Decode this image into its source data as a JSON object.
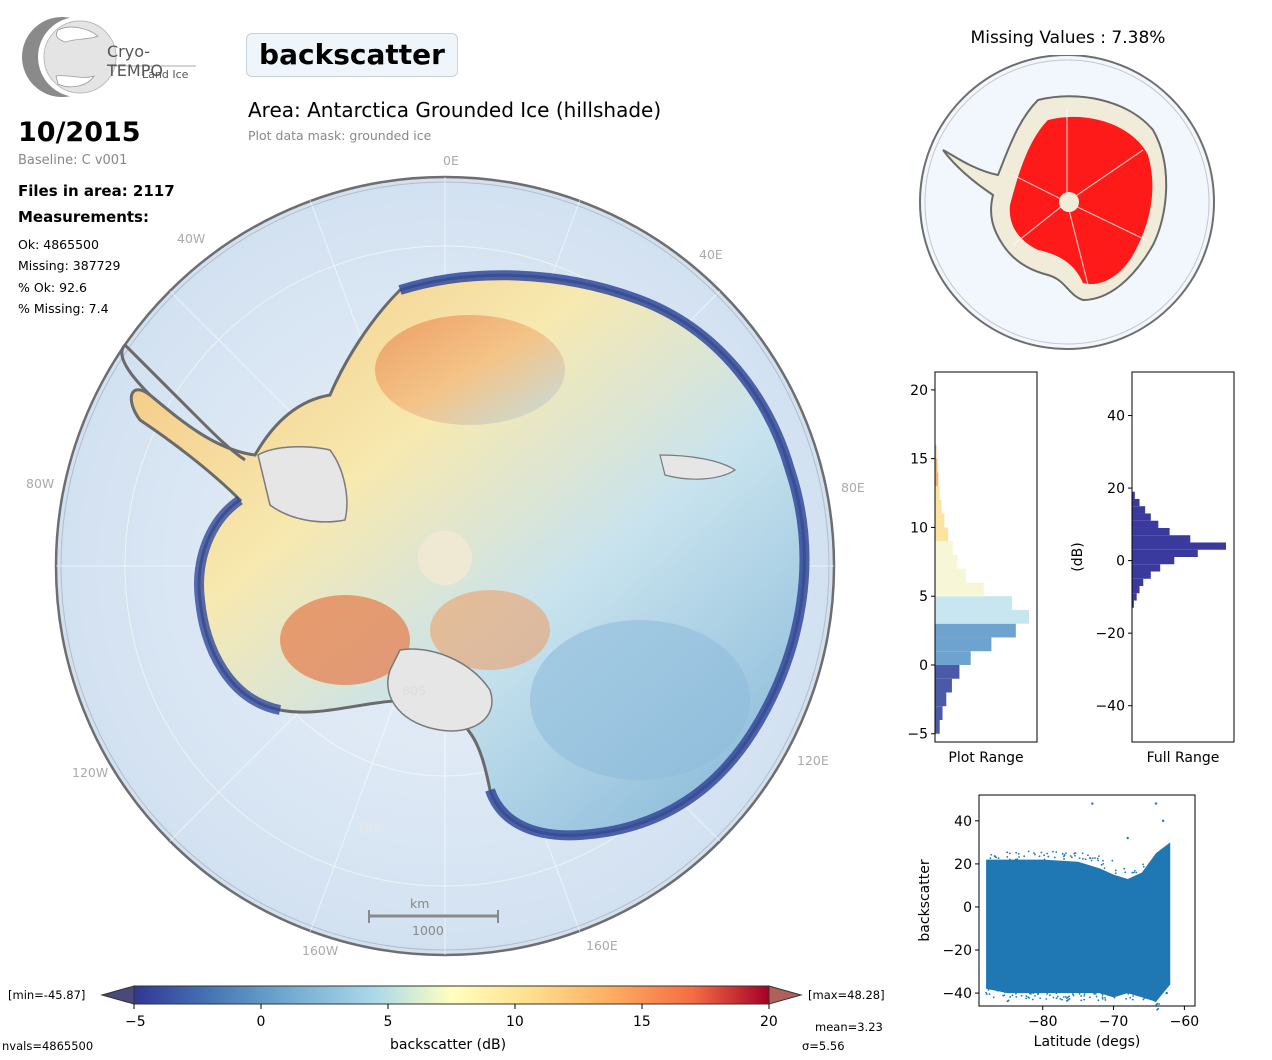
{
  "logo": {
    "name": "Cryo-TEMPO",
    "subtitle": "Land Ice"
  },
  "variable": "backscatter",
  "date": "10/2015",
  "baseline": "Baseline: C v001",
  "files_in_area": "Files in area: 2117",
  "measurements_title": "Measurements:",
  "stats": [
    "Ok: 4865500",
    "Missing: 387729",
    "% Ok: 92.6",
    "% Missing: 7.4"
  ],
  "area_title": "Area: Antarctica Grounded Ice (hillshade)",
  "mask_note": "Plot data mask: grounded ice",
  "map": {
    "lon_labels": [
      "0E",
      "40E",
      "80E",
      "120E",
      "160E",
      "160W",
      "120W",
      "80W",
      "40W"
    ],
    "lat_labels": [
      "80S",
      "70S"
    ],
    "scalebar": {
      "unit": "km",
      "value": "1000"
    },
    "colors": {
      "ocean": "#dbe7f4",
      "rim": "#5a5a5a",
      "pole": "#efe9d4"
    }
  },
  "missing": {
    "title": "Missing Values : 7.38%",
    "color": "#ff0000"
  },
  "colorbar": {
    "min_label": "[min=-45.87]",
    "max_label": "[max=48.28]",
    "ticks": [
      "-5",
      "0",
      "5",
      "10",
      "15",
      "20"
    ],
    "label": "backscatter (dB)",
    "nvals": "nvals=4865500",
    "mean": "mean=3.23",
    "sigma": "σ=5.56"
  },
  "chart_data": [
    {
      "type": "histogram",
      "title": "",
      "xlabel": "Plot Range",
      "ylabel": "",
      "ylim": [
        -5.6,
        21.3
      ],
      "yticks": [
        -5,
        0,
        5,
        10,
        15,
        20
      ],
      "bins_center": [
        -4.5,
        -3.5,
        -2.5,
        -1.5,
        -0.5,
        0.5,
        1.5,
        2.5,
        3.5,
        4.5,
        5.5,
        6.5,
        7.5,
        8.5,
        9.5,
        10.5,
        11.5,
        12.5,
        13.5,
        14.5,
        15.5,
        16.5
      ],
      "counts_relative": [
        0.05,
        0.08,
        0.12,
        0.18,
        0.26,
        0.38,
        0.6,
        0.86,
        1.0,
        0.82,
        0.52,
        0.33,
        0.24,
        0.19,
        0.14,
        0.1,
        0.07,
        0.05,
        0.035,
        0.025,
        0.015,
        0.005
      ]
    },
    {
      "type": "histogram",
      "title": "",
      "xlabel": "Full Range",
      "ylabel": "(dB)",
      "ylim": [
        -50,
        52
      ],
      "yticks": [
        -40,
        -20,
        0,
        20,
        40
      ],
      "bins_center": [
        -12,
        -10,
        -8,
        -6,
        -4,
        -2,
        0,
        2,
        4,
        6,
        8,
        10,
        12,
        14,
        16,
        18
      ],
      "counts_relative": [
        0.02,
        0.05,
        0.08,
        0.12,
        0.2,
        0.3,
        0.45,
        0.7,
        1.0,
        0.62,
        0.4,
        0.28,
        0.2,
        0.14,
        0.08,
        0.03
      ],
      "color": "#3a3a9e"
    },
    {
      "type": "scatter",
      "title": "",
      "xlabel": "Latitude (degs)",
      "ylabel": "backscatter",
      "xlim": [
        -89,
        -58.5
      ],
      "ylim": [
        -46,
        52
      ],
      "xticks": [
        -80,
        -70,
        -60
      ],
      "yticks": [
        -40,
        -20,
        0,
        20,
        40
      ],
      "color": "#1f77b4",
      "band": {
        "x": [
          -88,
          -85,
          -80,
          -75,
          -72,
          -70,
          -68,
          -66,
          -64,
          -62
        ],
        "upper": [
          22,
          22,
          22,
          21,
          18,
          15,
          13,
          16,
          25,
          30
        ],
        "lower": [
          -38,
          -40,
          -40,
          -40,
          -40,
          -42,
          -40,
          -42,
          -44,
          -36
        ]
      },
      "outliers": [
        [
          -73,
          48
        ],
        [
          -64,
          48
        ],
        [
          -68,
          32
        ],
        [
          -63,
          40
        ],
        [
          -62.5,
          -40
        ]
      ]
    }
  ]
}
